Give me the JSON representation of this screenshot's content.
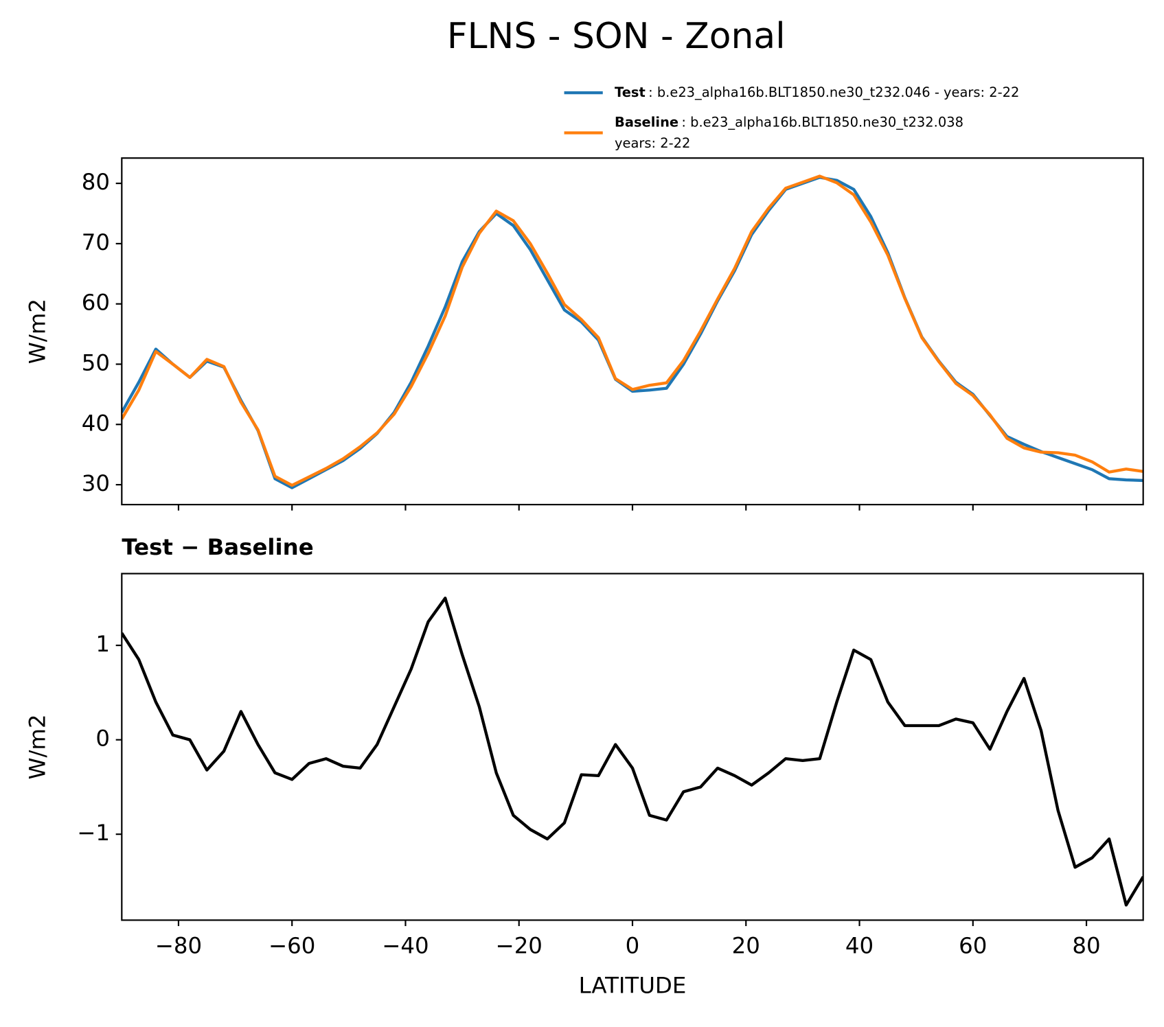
{
  "chart_data": [
    {
      "type": "line",
      "title": "FLNS - SON - Zonal",
      "ylabel": "W/m2",
      "x": [
        -90,
        -87,
        -84,
        -81,
        -78,
        -75,
        -72,
        -69,
        -66,
        -63,
        -60,
        -57,
        -54,
        -51,
        -48,
        -45,
        -42,
        -39,
        -36,
        -33,
        -30,
        -27,
        -24,
        -21,
        -18,
        -15,
        -12,
        -9,
        -6,
        -3,
        0,
        3,
        6,
        9,
        12,
        15,
        18,
        21,
        24,
        27,
        30,
        33,
        36,
        39,
        42,
        45,
        48,
        51,
        54,
        57,
        60,
        63,
        66,
        69,
        72,
        75,
        78,
        81,
        84,
        87,
        90
      ],
      "xlim": [
        -90,
        90
      ],
      "xticks": [
        -80,
        -60,
        -40,
        -20,
        0,
        20,
        40,
        60,
        80
      ],
      "ylim": [
        26.7,
        84.2
      ],
      "yticks": [
        30,
        40,
        50,
        60,
        70,
        80
      ],
      "series": [
        {
          "name": "Test",
          "description": [
            ": b.e23_alpha16b.BLT1850.ne30_t232.046 - years: 2-22"
          ],
          "color": "#1f77b4",
          "values": [
            42,
            47,
            52.5,
            50,
            47.8,
            50.5,
            49.5,
            44,
            39,
            31,
            29.5,
            31,
            32.5,
            34,
            36,
            38.5,
            42,
            47,
            53,
            59.5,
            67,
            72,
            75,
            73,
            69,
            64,
            59,
            57,
            54,
            47.5,
            45.5,
            45.7,
            46,
            50,
            55,
            60.5,
            65.5,
            71.5,
            75.5,
            79,
            80,
            81,
            80.5,
            79,
            74.5,
            68.5,
            61,
            54.5,
            50.5,
            47,
            45,
            41.5,
            38,
            36.7,
            35.5,
            34.5,
            33.5,
            32.5,
            31,
            30.8,
            30.7
          ]
        },
        {
          "name": "Baseline",
          "description": [
            ": b.e23_alpha16b.BLT1850.ne30_t232.038",
            "years: 2-22"
          ],
          "color": "#ff7f0e",
          "values": [
            40.9,
            45.7,
            52.1,
            50.0,
            47.8,
            50.8,
            49.6,
            43.7,
            39.1,
            31.4,
            29.9,
            31.3,
            32.7,
            34.3,
            36.3,
            38.6,
            41.7,
            46.3,
            51.8,
            58.0,
            66.1,
            71.7,
            75.4,
            73.8,
            70.0,
            65.1,
            59.9,
            57.4,
            54.4,
            47.6,
            45.8,
            46.5,
            46.9,
            50.6,
            55.5,
            60.8,
            65.9,
            72.0,
            75.9,
            79.2,
            80.2,
            81.2,
            80.1,
            78.1,
            73.6,
            68.1,
            60.9,
            54.4,
            50.4,
            46.8,
            44.8,
            41.6,
            37.7,
            36.1,
            35.4,
            35.3,
            34.9,
            33.8,
            32.1,
            32.6,
            32.2
          ]
        }
      ]
    },
    {
      "type": "line",
      "title": "Test − Baseline",
      "ylabel": "W/m2",
      "xlabel": "LATITUDE",
      "x": [
        -90,
        -87,
        -84,
        -81,
        -78,
        -75,
        -72,
        -69,
        -66,
        -63,
        -60,
        -57,
        -54,
        -51,
        -48,
        -45,
        -42,
        -39,
        -36,
        -33,
        -30,
        -27,
        -24,
        -21,
        -18,
        -15,
        -12,
        -9,
        -6,
        -3,
        0,
        3,
        6,
        9,
        12,
        15,
        18,
        21,
        24,
        27,
        30,
        33,
        36,
        39,
        42,
        45,
        48,
        51,
        54,
        57,
        60,
        63,
        66,
        69,
        72,
        75,
        78,
        81,
        84,
        87,
        90
      ],
      "xlim": [
        -90,
        90
      ],
      "xticks": [
        {
          "value": -80,
          "label": "−80"
        },
        {
          "value": -60,
          "label": "−60"
        },
        {
          "value": -40,
          "label": "−40"
        },
        {
          "value": -20,
          "label": "−20"
        },
        0,
        20,
        40,
        60,
        80
      ],
      "ylim": [
        -1.91,
        1.76
      ],
      "yticks": [
        {
          "value": -1,
          "label": "−1"
        },
        0,
        1
      ],
      "series": [
        {
          "color": "#000000",
          "values": [
            1.13,
            0.85,
            0.4,
            0.05,
            0.0,
            -0.32,
            -0.12,
            0.3,
            -0.05,
            -0.35,
            -0.42,
            -0.25,
            -0.2,
            -0.28,
            -0.3,
            -0.05,
            0.35,
            0.75,
            1.25,
            1.5,
            0.9,
            0.35,
            -0.35,
            -0.8,
            -0.95,
            -1.05,
            -0.88,
            -0.37,
            -0.38,
            -0.05,
            -0.3,
            -0.8,
            -0.85,
            -0.55,
            -0.5,
            -0.3,
            -0.38,
            -0.48,
            -0.35,
            -0.2,
            -0.22,
            -0.2,
            0.4,
            0.95,
            0.85,
            0.4,
            0.15,
            0.15,
            0.15,
            0.22,
            0.18,
            -0.1,
            0.3,
            0.65,
            0.1,
            -0.75,
            -1.35,
            -1.25,
            -1.05,
            -1.75,
            -1.45
          ]
        }
      ]
    }
  ]
}
